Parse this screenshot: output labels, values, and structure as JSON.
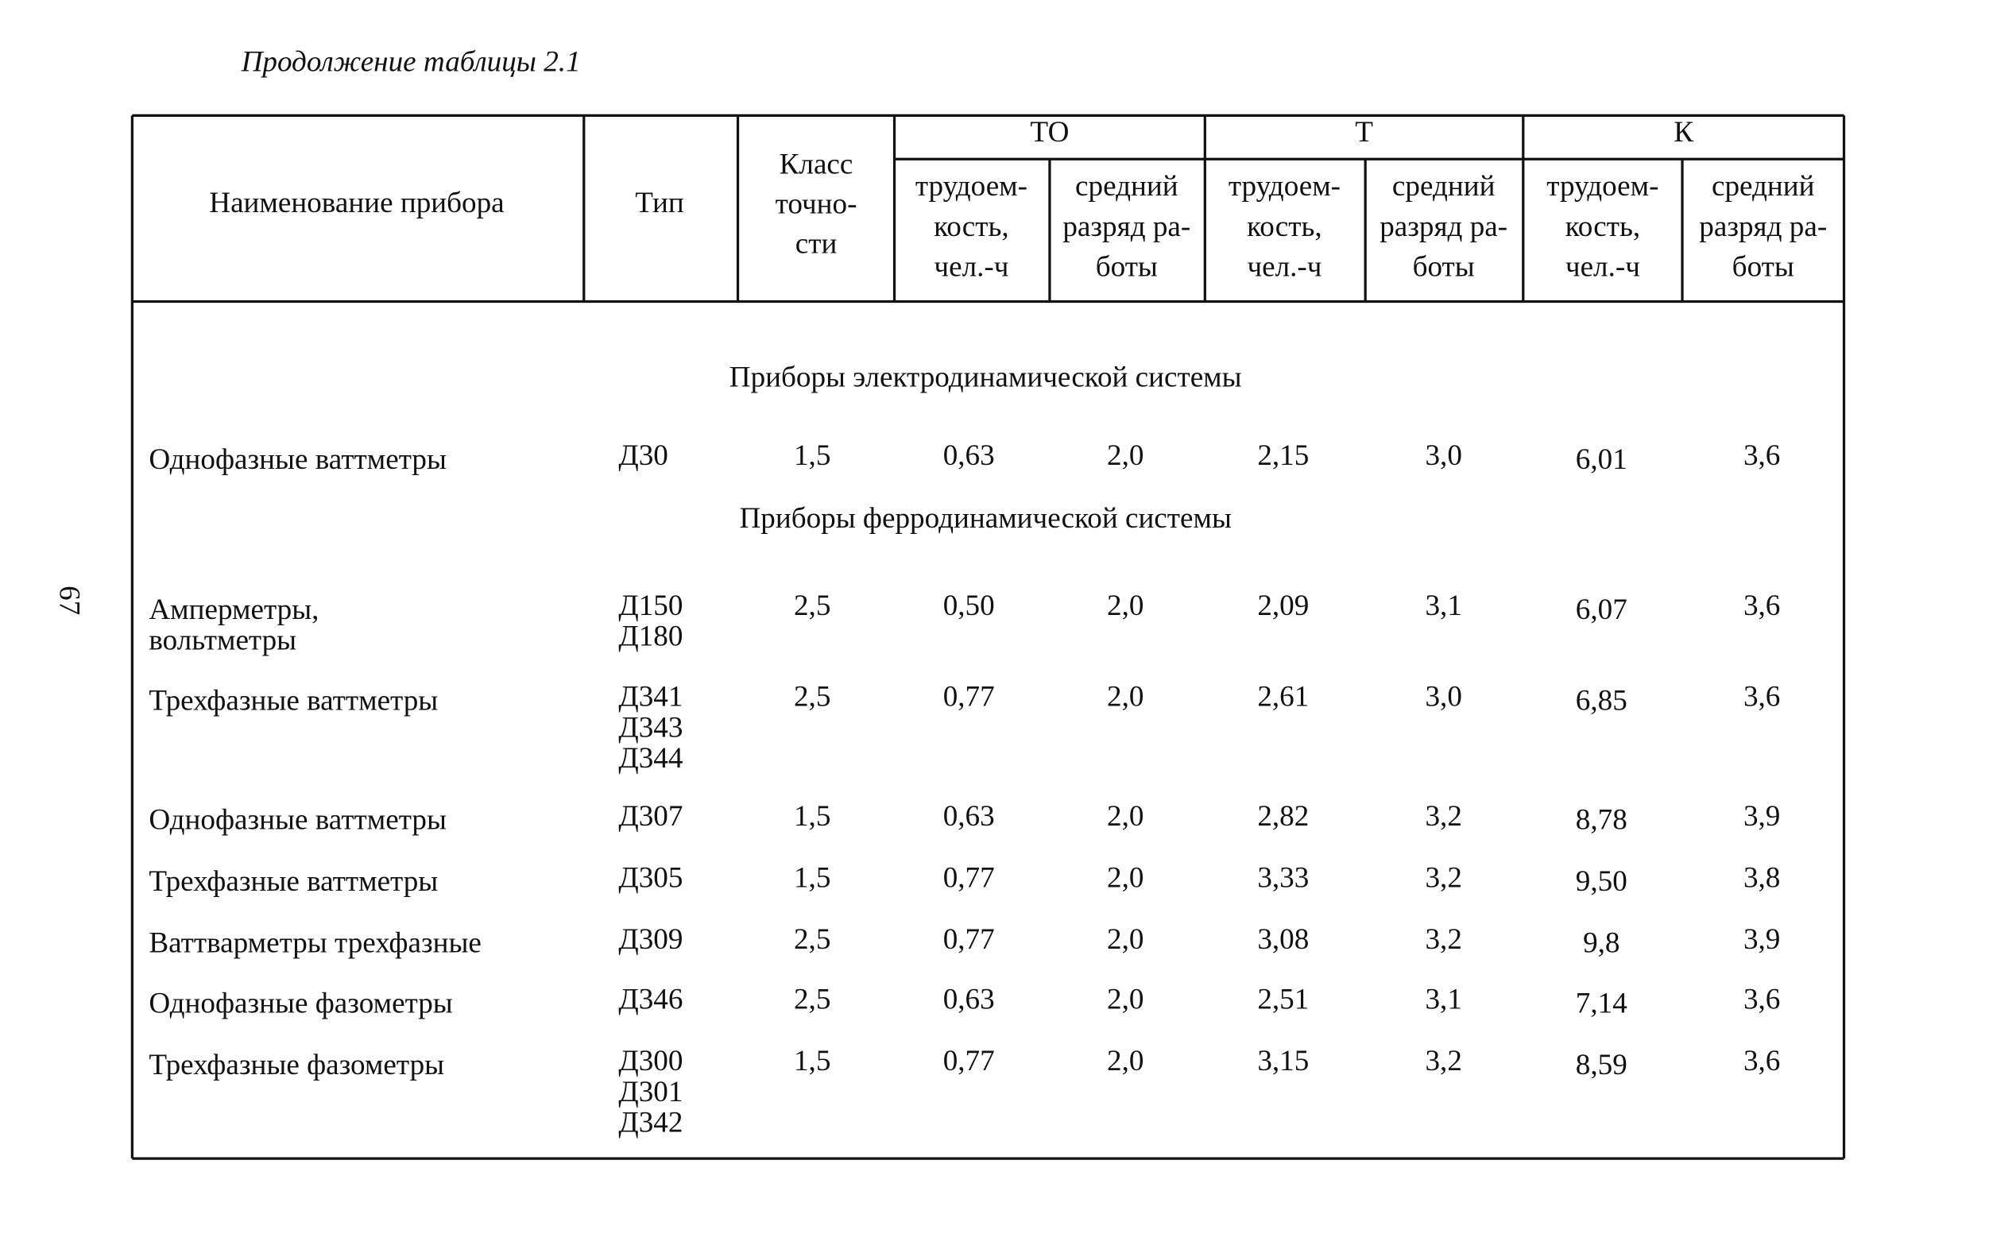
{
  "caption": "Продолжение таблицы 2.1",
  "page_number": "67",
  "header": {
    "name": "Наименование прибора",
    "type": "Тип",
    "accuracy_class": [
      "Класс",
      "точно-",
      "сти"
    ],
    "groups": [
      {
        "name": "ТО",
        "labor": [
          "трудоем-",
          "кость,",
          "чел.-ч"
        ],
        "grade": [
          "средний",
          "разряд ра-",
          "боты"
        ]
      },
      {
        "name": "Т",
        "labor": [
          "трудоем-",
          "кость,",
          "чел.-ч"
        ],
        "grade": [
          "средний",
          "разряд ра-",
          "боты"
        ]
      },
      {
        "name": "К",
        "labor": [
          "трудоем-",
          "кость,",
          "чел.-ч"
        ],
        "grade": [
          "средний",
          "разряд ра-",
          "боты"
        ]
      }
    ]
  },
  "sections": [
    {
      "title": "Приборы электродинамической системы",
      "rows": [
        {
          "name": [
            "Однофазные ваттметры"
          ],
          "type": [
            "Д30"
          ],
          "values": [
            "1,5",
            "0,63",
            "2,0",
            "2,15",
            "3,0",
            "6,01",
            "3,6"
          ]
        }
      ]
    },
    {
      "title": "Приборы ферродинамической системы",
      "rows": [
        {
          "name": [
            "Амперметры,",
            "вольтметры"
          ],
          "type": [
            "Д150",
            "Д180"
          ],
          "values": [
            "2,5",
            "0,50",
            "2,0",
            "2,09",
            "3,1",
            "6,07",
            "3,6"
          ]
        },
        {
          "name": [
            "Трехфазные ваттметры"
          ],
          "type": [
            "Д341",
            "Д343",
            "Д344"
          ],
          "values": [
            "2,5",
            "0,77",
            "2,0",
            "2,61",
            "3,0",
            "6,85",
            "3,6"
          ]
        },
        {
          "name": [
            "Однофазные ваттметры"
          ],
          "type": [
            "Д307"
          ],
          "values": [
            "1,5",
            "0,63",
            "2,0",
            "2,82",
            "3,2",
            "8,78",
            "3,9"
          ]
        },
        {
          "name": [
            "Трехфазные ваттметры"
          ],
          "type": [
            "Д305"
          ],
          "values": [
            "1,5",
            "0,77",
            "2,0",
            "3,33",
            "3,2",
            "9,50",
            "3,8"
          ]
        },
        {
          "name": [
            "Ваттварметры трехфазные"
          ],
          "type": [
            "Д309"
          ],
          "values": [
            "2,5",
            "0,77",
            "2,0",
            "3,08",
            "3,2",
            "9,8",
            "3,9"
          ]
        },
        {
          "name": [
            "Однофазные фазометры"
          ],
          "type": [
            "Д346"
          ],
          "values": [
            "2,5",
            "0,63",
            "2,0",
            "2,51",
            "3,1",
            "7,14",
            "3,6"
          ]
        },
        {
          "name": [
            "Трехфазные фазометры"
          ],
          "type": [
            "Д300",
            "Д301",
            "Д342"
          ],
          "values": [
            "1,5",
            "0,77",
            "2,0",
            "3,15",
            "3,2",
            "8,59",
            "3,6"
          ]
        }
      ]
    }
  ]
}
